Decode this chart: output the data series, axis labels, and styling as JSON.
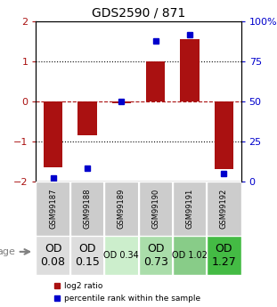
{
  "title": "GDS2590 / 871",
  "samples": [
    "GSM99187",
    "GSM99188",
    "GSM99189",
    "GSM99190",
    "GSM99191",
    "GSM99192"
  ],
  "log2_ratio": [
    -1.65,
    -0.85,
    -0.05,
    1.0,
    1.55,
    -1.7
  ],
  "percentile_rank": [
    2,
    8,
    50,
    88,
    92,
    5
  ],
  "bar_color": "#aa1111",
  "dot_color": "#0000cc",
  "ylim": [
    -2,
    2
  ],
  "y2lim": [
    0,
    100
  ],
  "yticks": [
    -2,
    -1,
    0,
    1,
    2
  ],
  "y2ticks": [
    0,
    25,
    50,
    75,
    100
  ],
  "hline_positions": [
    -1,
    0,
    1
  ],
  "hline_styles": [
    "dotted",
    "dashed",
    "dotted"
  ],
  "cell_labels": [
    "OD\n0.08",
    "OD\n0.15",
    "OD 0.34",
    "OD\n0.73",
    "OD 1.02",
    "OD\n1.27"
  ],
  "cell_colors": [
    "#dddddd",
    "#dddddd",
    "#cceecc",
    "#aaddaa",
    "#88cc88",
    "#44bb44"
  ],
  "cell_fontsize": [
    9,
    9,
    7,
    9,
    7,
    9
  ],
  "row_label": "age",
  "legend_red": "log2 ratio",
  "legend_blue": "percentile rank within the sample",
  "background_color": "#ffffff"
}
